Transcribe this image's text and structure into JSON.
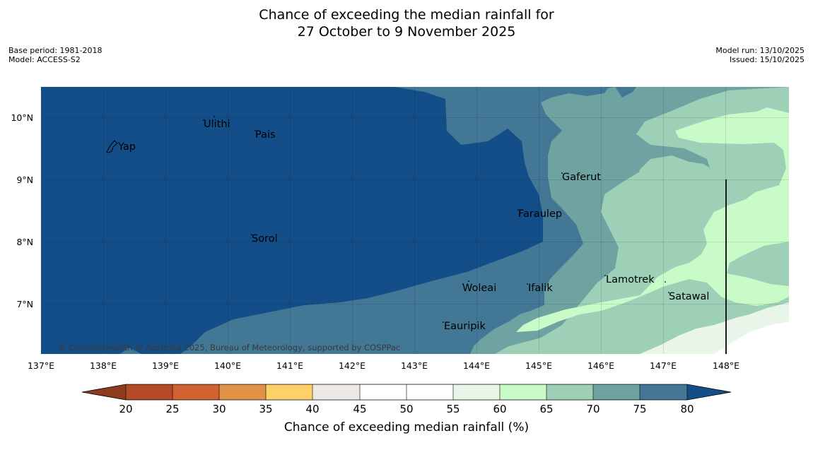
{
  "title": {
    "line1": "Chance of exceeding the median rainfall for",
    "line2": "27 October to 9 November 2025"
  },
  "meta_left": {
    "base_period": "Base period: 1981-2018",
    "model": "Model: ACCESS-S2"
  },
  "meta_right": {
    "model_run": "Model run: 13/10/2025",
    "issued": "Issued: 15/10/2025"
  },
  "map": {
    "lon_ticks": [
      "137°E",
      "138°E",
      "139°E",
      "140°E",
      "141°E",
      "142°E",
      "143°E",
      "144°E",
      "145°E",
      "146°E",
      "147°E",
      "148°E"
    ],
    "lat_ticks": [
      "10°N",
      "9°N",
      "8°N",
      "7°N"
    ],
    "places": [
      "Ulithi",
      "Pais",
      "Yap",
      "Gaferut",
      "Faraulep",
      "Sorol",
      "Lamotrek",
      "Woleai",
      "Ifalik",
      "Satawal",
      "Eauripik"
    ],
    "copyright": "© Commonwealth of Australia 2025, Bureau of Meteorology, supported by COSPPac"
  },
  "colorbar": {
    "ticks": [
      "20",
      "25",
      "30",
      "35",
      "40",
      "45",
      "50",
      "55",
      "60",
      "65",
      "70",
      "75",
      "80"
    ],
    "colors": {
      "below_20": "#8e3a1e",
      "20_25": "#b34a28",
      "25_30": "#cf6230",
      "30_35": "#e29248",
      "35_40": "#fdd068",
      "40_45": "#ece8e3",
      "45_50": "#ffffff",
      "50_55": "#ffffff",
      "55_60": "#eaf5ea",
      "60_65": "#c9fbc9",
      "65_70": "#9dd0b7",
      "70_75": "#6ea3a2",
      "75_80": "#427896",
      "above_80": "#144e88"
    },
    "label": "Chance of exceeding median rainfall (%)"
  }
}
